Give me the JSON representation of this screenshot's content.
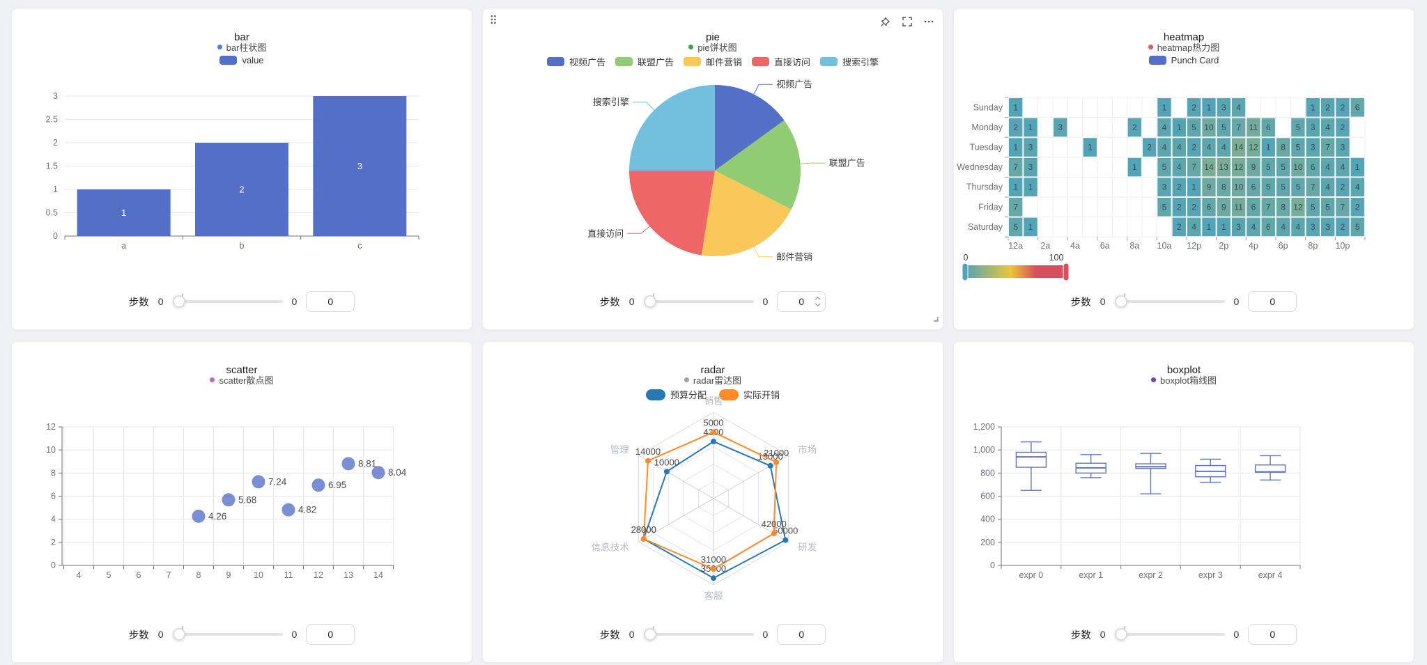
{
  "app": {
    "background": "#eef0f3",
    "card_background": "#ffffff"
  },
  "controls": {
    "label": "步数",
    "min": "0",
    "max": "0",
    "value": "0"
  },
  "icons": {
    "drag_handle": "drag-handle-icon",
    "pin": "pushpin-icon",
    "fullscreen": "fullscreen-icon",
    "more": "ellipsis-icon",
    "resize": "resize-corner-icon",
    "spinner": "input-stepper-icons"
  },
  "chart_data": [
    {
      "id": "bar",
      "type": "bar",
      "title": "bar",
      "legend_dot": {
        "label": "bar柱状图",
        "color": "#4f82d9"
      },
      "series_legend": [
        {
          "label": "value",
          "color": "#5470c6"
        }
      ],
      "categories": [
        "a",
        "b",
        "c"
      ],
      "values": [
        1,
        2,
        3
      ],
      "value_labels": [
        "1",
        "2",
        "3"
      ],
      "bar_color": "#5470c6",
      "ylim": [
        0,
        3
      ],
      "yticks": [
        0,
        0.5,
        1,
        1.5,
        2,
        2.5,
        3
      ],
      "ytick_labels": [
        "0",
        "0.5",
        "1",
        "1.5",
        "2",
        "2.5",
        "3"
      ]
    },
    {
      "id": "pie",
      "type": "pie",
      "title": "pie",
      "legend_dot": {
        "label": "pie饼状图",
        "color": "#43a047"
      },
      "series_legend": [
        {
          "label": "视频广告",
          "color": "#5470c6"
        },
        {
          "label": "联盟广告",
          "color": "#91cc75"
        },
        {
          "label": "邮件营销",
          "color": "#fac858"
        },
        {
          "label": "直接访问",
          "color": "#ee6666"
        },
        {
          "label": "搜索引擎",
          "color": "#73c0de"
        }
      ],
      "slices": [
        {
          "name": "视频广告",
          "value": 300,
          "color": "#5470c6"
        },
        {
          "name": "联盟广告",
          "value": 350,
          "color": "#91cc75"
        },
        {
          "name": "邮件营销",
          "value": 400,
          "color": "#fac858"
        },
        {
          "name": "直接访问",
          "value": 450,
          "color": "#ee6666"
        },
        {
          "name": "搜索引擎",
          "value": 500,
          "color": "#73c0de"
        }
      ]
    },
    {
      "id": "heatmap",
      "type": "heatmap",
      "title": "heatmap",
      "legend_dot": {
        "label": "heatmap热力图",
        "color": "#e15b5b"
      },
      "series_legend": [
        {
          "label": "Punch Card",
          "color": "#5470c6"
        }
      ],
      "days": [
        "Sunday",
        "Monday",
        "Tuesday",
        "Wednesday",
        "Thursday",
        "Friday",
        "Saturday"
      ],
      "hour_labels": [
        "12a",
        "2a",
        "4a",
        "6a",
        "8a",
        "10a",
        "12p",
        "2p",
        "4p",
        "6p",
        "8p",
        "10p"
      ],
      "rows": [
        [
          1,
          0,
          0,
          0,
          0,
          0,
          0,
          0,
          0,
          0,
          1,
          0,
          2,
          1,
          3,
          4,
          0,
          0,
          0,
          0,
          1,
          2,
          2,
          6
        ],
        [
          2,
          1,
          0,
          3,
          0,
          0,
          0,
          0,
          2,
          0,
          4,
          1,
          5,
          10,
          5,
          7,
          11,
          6,
          0,
          5,
          3,
          4,
          2,
          0
        ],
        [
          1,
          3,
          0,
          0,
          0,
          1,
          0,
          0,
          0,
          2,
          4,
          4,
          2,
          4,
          4,
          14,
          12,
          1,
          8,
          5,
          3,
          7,
          3,
          0
        ],
        [
          7,
          3,
          0,
          0,
          0,
          0,
          0,
          0,
          1,
          0,
          5,
          4,
          7,
          14,
          13,
          12,
          9,
          5,
          5,
          10,
          6,
          4,
          4,
          1
        ],
        [
          1,
          1,
          0,
          0,
          0,
          0,
          0,
          0,
          0,
          0,
          3,
          2,
          1,
          9,
          8,
          10,
          6,
          5,
          5,
          5,
          7,
          4,
          2,
          4
        ],
        [
          7,
          0,
          0,
          0,
          0,
          0,
          0,
          0,
          0,
          0,
          5,
          2,
          2,
          6,
          9,
          11,
          6,
          7,
          8,
          12,
          5,
          5,
          7,
          2
        ],
        [
          5,
          1,
          0,
          0,
          0,
          0,
          0,
          0,
          0,
          0,
          0,
          2,
          4,
          1,
          1,
          3,
          4,
          6,
          4,
          4,
          3,
          3,
          2,
          5
        ]
      ],
      "visual_map": {
        "min": 0,
        "max": 100,
        "min_label": "0",
        "max_label": "100",
        "colors": [
          "#50a3ba",
          "#eac736",
          "#d94e5d"
        ]
      }
    },
    {
      "id": "scatter",
      "type": "scatter",
      "title": "scatter",
      "legend_dot": {
        "label": "scatter散点图",
        "color": "#c85fc2"
      },
      "point_color": "#5470c6",
      "points": [
        [
          8,
          4.26
        ],
        [
          9,
          5.68
        ],
        [
          10,
          7.24
        ],
        [
          11,
          4.82
        ],
        [
          12,
          6.95
        ],
        [
          13,
          8.81
        ],
        [
          14,
          8.04
        ]
      ],
      "point_labels": [
        "4.26",
        "5.68",
        "7.24",
        "4.82",
        "6.95",
        "8.81",
        "8.04"
      ],
      "xticks": [
        4,
        5,
        6,
        7,
        8,
        9,
        10,
        11,
        12,
        13,
        14
      ],
      "yticks": [
        0,
        2,
        4,
        6,
        8,
        10,
        12
      ],
      "ylim": [
        0,
        12
      ]
    },
    {
      "id": "radar",
      "type": "radar",
      "title": "radar",
      "legend_dot": {
        "label": "radar雷达图",
        "color": "#9e9ea3"
      },
      "series_legend": [
        {
          "label": "预算分配",
          "color": "#2878b5"
        },
        {
          "label": "实际开销",
          "color": "#ff8a26"
        }
      ],
      "indicators": [
        {
          "name": "销售",
          "max": 6500
        },
        {
          "name": "市场",
          "max": 25000
        },
        {
          "name": "研发",
          "max": 52000
        },
        {
          "name": "客服",
          "max": 38000
        },
        {
          "name": "信息技术",
          "max": 30000
        },
        {
          "name": "管理",
          "max": 16000
        }
      ],
      "series": [
        {
          "name": "预算分配",
          "color": "#2878b5",
          "values": [
            4300,
            19000,
            50000,
            35000,
            28000,
            10000
          ]
        },
        {
          "name": "实际开销",
          "color": "#ff8a26",
          "values": [
            5000,
            21000,
            42000,
            31000,
            28000,
            14000
          ]
        }
      ],
      "levels": 5
    },
    {
      "id": "boxplot",
      "type": "boxplot",
      "title": "boxplot",
      "legend_dot": {
        "label": "boxplot箱线图",
        "color": "#6f42ad"
      },
      "box_color": "#5e72c4",
      "categories": [
        "expr 0",
        "expr 1",
        "expr 2",
        "expr 3",
        "expr 4"
      ],
      "boxes": [
        [
          650,
          850,
          940,
          980,
          1070
        ],
        [
          760,
          800,
          845,
          885,
          960
        ],
        [
          620,
          840,
          855,
          880,
          970
        ],
        [
          720,
          767.5,
          815,
          865,
          920
        ],
        [
          740,
          807.5,
          810,
          870,
          950
        ]
      ],
      "ylim": [
        0,
        1200
      ],
      "yticks": [
        0,
        200,
        400,
        600,
        800,
        1000,
        1200
      ],
      "ytick_labels": [
        "0",
        "200",
        "400",
        "600",
        "800",
        "1,000",
        "1,200"
      ]
    }
  ]
}
